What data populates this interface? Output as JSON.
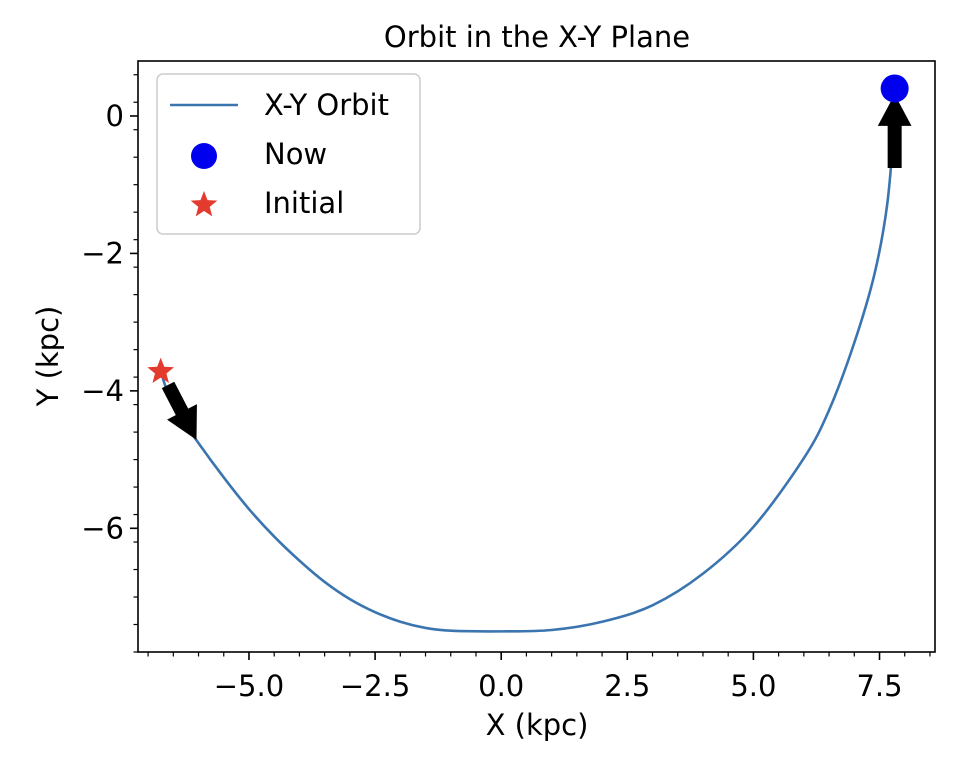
{
  "chart_data": {
    "type": "line",
    "title": "Orbit in the X-Y Plane",
    "xlabel": "X (kpc)",
    "ylabel": "Y (kpc)",
    "xlim": [
      -7.2,
      8.6
    ],
    "ylim": [
      -7.8,
      0.8
    ],
    "x_ticks": [
      -5.0,
      -2.5,
      0.0,
      2.5,
      5.0,
      7.5
    ],
    "x_tick_labels": [
      "−5.0",
      "−2.5",
      "0.0",
      "2.5",
      "5.0",
      "7.5"
    ],
    "y_ticks": [
      0,
      -2,
      -4,
      -6
    ],
    "y_tick_labels": [
      "0",
      "−2",
      "−4",
      "−6"
    ],
    "grid": false,
    "legend": {
      "placement": "upper-left",
      "entries": [
        {
          "label": "X-Y Orbit",
          "marker": "line",
          "color": "#3b75af"
        },
        {
          "label": "Now",
          "marker": "circle",
          "color": "#0000ee"
        },
        {
          "label": "Initial",
          "marker": "star",
          "color": "#e33c2e"
        }
      ]
    },
    "series": [
      {
        "name": "X-Y Orbit",
        "color": "#3b75af",
        "points": [
          [
            -6.75,
            -3.72
          ],
          [
            -6.5,
            -4.22
          ],
          [
            -6.0,
            -4.76
          ],
          [
            -5.5,
            -5.26
          ],
          [
            -5.0,
            -5.72
          ],
          [
            -4.5,
            -6.12
          ],
          [
            -4.0,
            -6.47
          ],
          [
            -3.5,
            -6.78
          ],
          [
            -3.0,
            -7.03
          ],
          [
            -2.5,
            -7.22
          ],
          [
            -2.0,
            -7.36
          ],
          [
            -1.5,
            -7.45
          ],
          [
            -1.0,
            -7.49
          ],
          [
            0.0,
            -7.5
          ],
          [
            1.0,
            -7.48
          ],
          [
            2.0,
            -7.36
          ],
          [
            3.0,
            -7.12
          ],
          [
            4.0,
            -6.66
          ],
          [
            5.0,
            -5.98
          ],
          [
            6.0,
            -4.98
          ],
          [
            6.5,
            -4.28
          ],
          [
            7.0,
            -3.3
          ],
          [
            7.4,
            -2.3
          ],
          [
            7.65,
            -1.3
          ],
          [
            7.78,
            -0.2
          ],
          [
            7.8,
            0.4
          ]
        ]
      }
    ],
    "markers": [
      {
        "name": "Now",
        "shape": "circle",
        "x": 7.8,
        "y": 0.4,
        "color": "#0000ee"
      },
      {
        "name": "Initial",
        "shape": "star",
        "x": -6.75,
        "y": -3.72,
        "color": "#e33c2e"
      }
    ],
    "arrows": [
      {
        "from": [
          7.8,
          -0.75
        ],
        "to": [
          7.8,
          0.3
        ],
        "color": "#000000"
      },
      {
        "from": [
          -6.6,
          -3.92
        ],
        "to": [
          -6.05,
          -4.7
        ],
        "color": "#000000"
      }
    ]
  }
}
